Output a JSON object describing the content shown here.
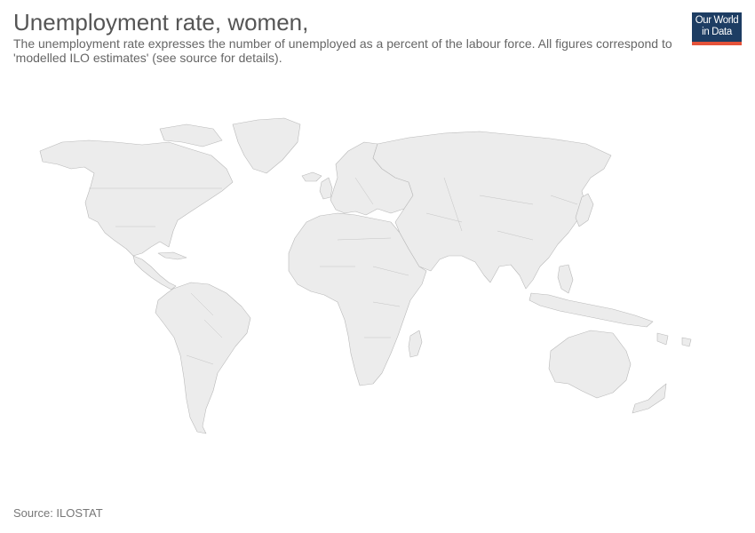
{
  "title": "Unemployment rate, women,",
  "subtitle": "The unemployment rate expresses the number of unemployed as a percent of the labour force. All figures correspond to 'modelled ILO estimates' (see source for details).",
  "logo": {
    "line1": "Our World",
    "line2": "in Data"
  },
  "source": "Source: ILOSTAT",
  "map": {
    "fill_color": "#ececec",
    "border_color": "#b9b9b9",
    "data_shown": false
  }
}
